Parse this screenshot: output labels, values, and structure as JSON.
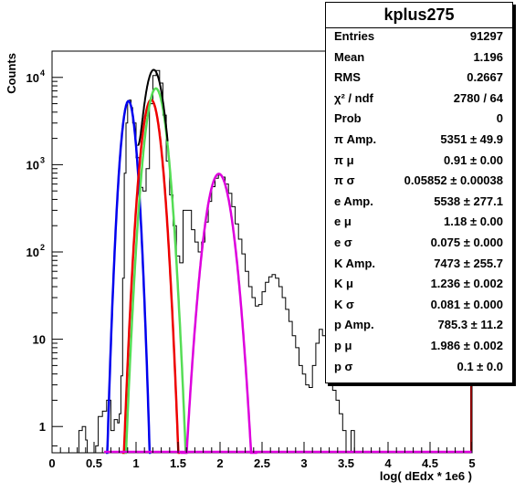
{
  "chart_data": {
    "type": "line",
    "ylabel": "Counts",
    "xlabel": "log( dEdx * 1e6 )",
    "xlim": [
      0,
      5
    ],
    "ylim": [
      0.5,
      20000
    ],
    "yscale": "log",
    "x_ticks": [
      "0",
      "0.5",
      "1",
      "1.5",
      "2",
      "2.5",
      "3",
      "3.5",
      "4",
      "4.5",
      "5"
    ],
    "y_ticks": [
      {
        "value": 1,
        "label": "1"
      },
      {
        "value": 10,
        "label": "10"
      },
      {
        "value": 100,
        "label": "10",
        "exp": "2"
      },
      {
        "value": 1000,
        "label": "10",
        "exp": "3"
      },
      {
        "value": 10000,
        "label": "10",
        "exp": "4"
      }
    ],
    "histogram": {
      "color": "#000000",
      "points": [
        [
          0.3,
          0.5
        ],
        [
          0.32,
          0.9
        ],
        [
          0.36,
          1.0
        ],
        [
          0.4,
          0.7
        ],
        [
          0.42,
          0.5
        ],
        [
          0.48,
          0.5
        ],
        [
          0.52,
          0.6
        ],
        [
          0.55,
          1.3
        ],
        [
          0.6,
          1.5
        ],
        [
          0.65,
          2.0
        ],
        [
          0.7,
          0.9
        ],
        [
          0.74,
          1.2
        ],
        [
          0.78,
          1.1
        ],
        [
          0.8,
          1.4
        ],
        [
          0.82,
          3.8
        ],
        [
          0.84,
          50
        ],
        [
          0.86,
          800
        ],
        [
          0.88,
          3000
        ],
        [
          0.9,
          5200
        ],
        [
          0.92,
          5500
        ],
        [
          0.94,
          4500
        ],
        [
          0.96,
          3000
        ],
        [
          1.0,
          1200
        ],
        [
          1.04,
          550
        ],
        [
          1.08,
          500
        ],
        [
          1.12,
          900
        ],
        [
          1.16,
          5000
        ],
        [
          1.2,
          10500
        ],
        [
          1.24,
          12000
        ],
        [
          1.28,
          8600
        ],
        [
          1.32,
          3700
        ],
        [
          1.36,
          1100
        ],
        [
          1.4,
          450
        ],
        [
          1.44,
          200
        ],
        [
          1.48,
          90
        ],
        [
          1.52,
          75
        ],
        [
          1.56,
          300
        ],
        [
          1.6,
          300
        ],
        [
          1.66,
          180
        ],
        [
          1.7,
          130
        ],
        [
          1.74,
          100
        ],
        [
          1.78,
          130
        ],
        [
          1.82,
          220
        ],
        [
          1.86,
          380
        ],
        [
          1.9,
          560
        ],
        [
          1.94,
          700
        ],
        [
          1.98,
          760
        ],
        [
          2.02,
          720
        ],
        [
          2.06,
          600
        ],
        [
          2.1,
          470
        ],
        [
          2.14,
          330
        ],
        [
          2.18,
          210
        ],
        [
          2.22,
          140
        ],
        [
          2.26,
          95
        ],
        [
          2.3,
          60
        ],
        [
          2.34,
          40
        ],
        [
          2.38,
          30
        ],
        [
          2.42,
          24
        ],
        [
          2.46,
          25
        ],
        [
          2.5,
          35
        ],
        [
          2.54,
          45
        ],
        [
          2.58,
          52
        ],
        [
          2.62,
          55
        ],
        [
          2.66,
          50
        ],
        [
          2.7,
          40
        ],
        [
          2.74,
          30
        ],
        [
          2.78,
          22
        ],
        [
          2.82,
          16
        ],
        [
          2.86,
          11
        ],
        [
          2.9,
          8
        ],
        [
          2.94,
          5
        ],
        [
          2.98,
          4
        ],
        [
          3.02,
          3
        ],
        [
          3.06,
          2.8
        ],
        [
          3.1,
          5
        ],
        [
          3.14,
          9
        ],
        [
          3.18,
          13
        ],
        [
          3.22,
          11
        ],
        [
          3.26,
          8
        ],
        [
          3.3,
          4
        ],
        [
          3.34,
          2.6
        ],
        [
          3.38,
          2.0
        ],
        [
          3.42,
          1.4
        ],
        [
          3.46,
          0.9
        ],
        [
          3.5,
          0.5
        ],
        [
          3.56,
          0.9
        ],
        [
          3.6,
          0.5
        ],
        [
          5.0,
          0.5
        ]
      ]
    },
    "fits": [
      {
        "particle": "pi",
        "color": "#0000ee",
        "amp": 5351,
        "mu": 0.91,
        "sigma": 0.05852
      },
      {
        "particle": "e",
        "color": "#ee0000",
        "amp": 5538,
        "mu": 1.18,
        "sigma": 0.075
      },
      {
        "particle": "K",
        "color": "#55dd55",
        "amp": 7473,
        "mu": 1.236,
        "sigma": 0.081
      },
      {
        "particle": "p",
        "color": "#dd00dd",
        "amp": 785.3,
        "mu": 1.986,
        "sigma": 0.1
      }
    ]
  },
  "stats": {
    "title": "kplus275",
    "rows": [
      {
        "label": "Entries",
        "value": "91297"
      },
      {
        "label": "Mean",
        "value": "1.196"
      },
      {
        "label": "RMS",
        "value": "0.2667"
      },
      {
        "label": "χ² / ndf",
        "value": "2780 / 64"
      },
      {
        "label": "Prob",
        "value": "0"
      },
      {
        "label": "π Amp.",
        "value": "5351 ± 49.9"
      },
      {
        "label": "π μ",
        "value": "0.91 ± 0.00"
      },
      {
        "label": "π σ",
        "value": "0.05852 ± 0.00038"
      },
      {
        "label": "e Amp.",
        "value": "5538 ± 277.1"
      },
      {
        "label": "e μ",
        "value": "1.18 ± 0.00"
      },
      {
        "label": "e σ",
        "value": "0.075 ± 0.000"
      },
      {
        "label": "K Amp.",
        "value": "7473 ± 255.7"
      },
      {
        "label": "K μ",
        "value": "1.236 ± 0.002"
      },
      {
        "label": "K σ",
        "value": "0.081 ± 0.000"
      },
      {
        "label": "p Amp.",
        "value": "785.3 ± 11.2"
      },
      {
        "label": "p μ",
        "value": "1.986 ± 0.002"
      },
      {
        "label": "p σ",
        "value": "0.1 ± 0.0"
      }
    ]
  }
}
